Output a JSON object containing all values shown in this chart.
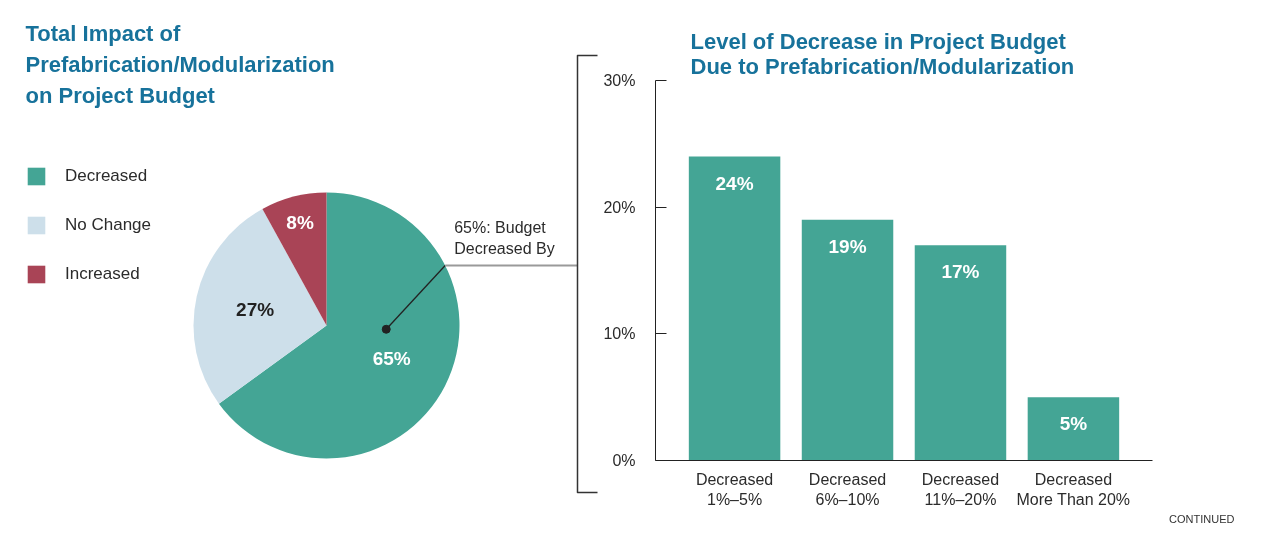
{
  "chart_data": [
    {
      "type": "pie",
      "title": "Total Impact of Prefabrication/Modularization on Project Budget",
      "categories": [
        "Decreased",
        "No Change",
        "Increased"
      ],
      "values": [
        65,
        27,
        8
      ],
      "colors": [
        "#44a595",
        "#cddfea",
        "#a94456"
      ],
      "value_labels": [
        "65%",
        "27%",
        "8%"
      ],
      "legend": "top left",
      "annotations": [
        "65%: Budget Decreased By"
      ]
    },
    {
      "type": "bar",
      "title": "Level of Decrease in Project Budget Due to Prefabrication/Modularization",
      "categories": [
        "Decreased 1%–5%",
        "Decreased 6%–10%",
        "Decreased 11%–20%",
        "Decreased More Than 20%"
      ],
      "values": [
        24,
        19,
        17,
        5
      ],
      "color": "#44a595",
      "ylim": [
        0,
        30
      ],
      "yticks": [
        {
          "value": 0,
          "label": "0%"
        },
        {
          "value": 10,
          "label": "10%"
        },
        {
          "value": 20,
          "label": "20%"
        },
        {
          "value": 30,
          "label": "30%"
        }
      ],
      "value_labels": [
        "24%",
        "19%",
        "17%",
        "5%"
      ],
      "annotations": [
        "CONTINUED"
      ]
    }
  ]
}
